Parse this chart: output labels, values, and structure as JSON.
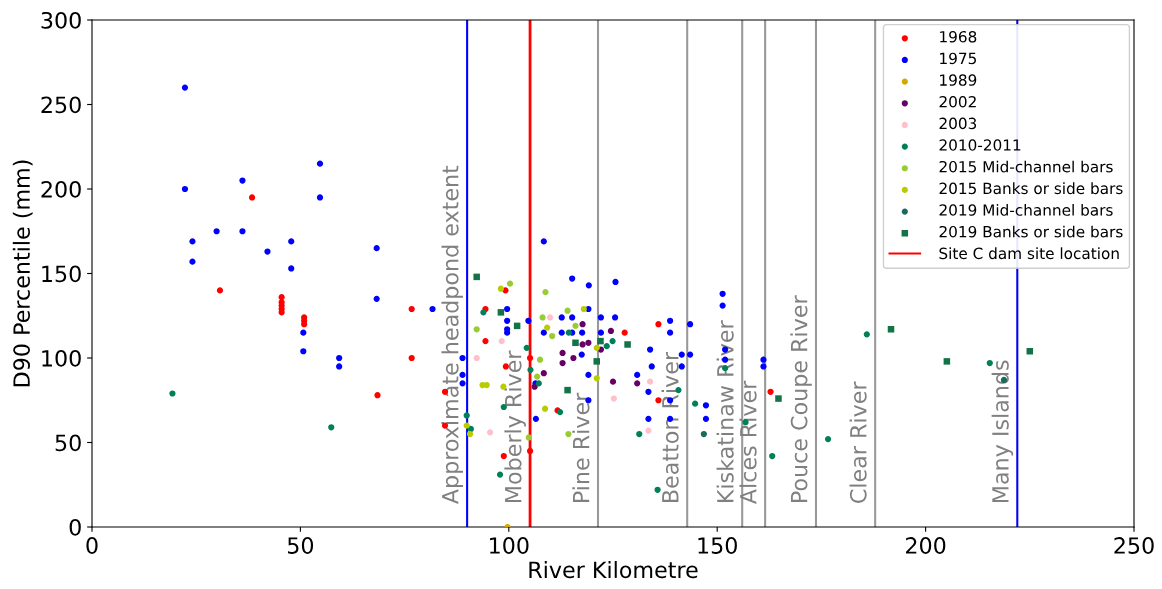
{
  "chart_data": {
    "type": "scatter",
    "xlabel": "River Kilometre",
    "ylabel": "D90 Percentile (mm)",
    "xlim": [
      0,
      250
    ],
    "xticks": [
      0,
      50,
      100,
      150,
      200,
      250
    ],
    "ylim": [
      0,
      300
    ],
    "yticks": [
      0,
      50,
      100,
      150,
      200,
      250,
      300
    ],
    "grid": false,
    "legend": "top right",
    "marker": "circle",
    "series": [
      {
        "name": "1968",
        "color": "#ff0000",
        "x": [
          38.4,
          30.7,
          45.5,
          45.5,
          45.5,
          45.5,
          45.5,
          50.9,
          50.9,
          50.9,
          76.7,
          76.7,
          68.5,
          84.7,
          84.7,
          99.2,
          94.4,
          127.8,
          111.7,
          105.1,
          94.4,
          99.3,
          98.8,
          105.1,
          135.9,
          135.9,
          162.8
        ],
        "values": [
          195,
          140,
          136,
          133,
          131,
          129,
          127,
          124,
          122,
          120,
          129,
          100,
          78,
          80,
          60,
          140,
          129,
          115,
          69,
          100,
          110,
          95,
          42,
          45,
          120,
          75,
          80
        ]
      },
      {
        "name": "1975",
        "color": "#0000ff",
        "x": [
          22.3,
          22.3,
          36.1,
          54.7,
          54.7,
          24.1,
          29.9,
          36.1,
          24.1,
          42.1,
          47.8,
          47.8,
          68.3,
          68.3,
          81.7,
          50.7,
          50.7,
          59.3,
          59.3,
          108.4,
          115.2,
          119.2,
          125.6,
          99.6,
          99.6,
          99.6,
          99.6,
          104.7,
          112.7,
          115.2,
          119.1,
          122.1,
          125.5,
          112.7,
          115.2,
          117.6,
          108.4,
          122.1,
          117.5,
          119.1,
          119.1,
          106.5,
          106.4,
          88.9,
          88.9,
          88.9,
          133.9,
          134.3,
          133.5,
          133.5,
          130.8,
          138.7,
          138.7,
          143.5,
          141.5,
          143.5,
          141.5,
          138.7,
          138.7,
          147.3,
          147.3,
          151.3,
          151.3,
          151.9,
          151.9,
          161.1,
          161.1
        ],
        "values": [
          260,
          200,
          205,
          215,
          195,
          169,
          175,
          175,
          157,
          163,
          169,
          153,
          165,
          135,
          129,
          115,
          104,
          100,
          95,
          169,
          147,
          143,
          145,
          129,
          122,
          117,
          115,
          122,
          124,
          124,
          129,
          124,
          124,
          115,
          115,
          115,
          115,
          115,
          102,
          90,
          75,
          64,
          85,
          100,
          90,
          85,
          105,
          95,
          80,
          64,
          90,
          122,
          115,
          120,
          102,
          102,
          95,
          75,
          64,
          72,
          64,
          138,
          131,
          105,
          99,
          99,
          95
        ]
      },
      {
        "name": "1989",
        "color": "#d4a800",
        "x": [
          99.7
        ],
        "values": [
          0
        ]
      },
      {
        "name": "2002",
        "color": "#660066",
        "x": [
          117.7,
          124.5,
          117.7,
          119.1,
          122.1,
          112.9,
          112.9,
          115.5,
          125.0,
          108.4,
          106.2,
          130.8
        ],
        "values": [
          120,
          116,
          108,
          109,
          105,
          103,
          97,
          100,
          86,
          91,
          83,
          85
        ]
      },
      {
        "name": "2003",
        "color": "#ffc0cb",
        "x": [
          98.3,
          95.5,
          92.3,
          133.9,
          133.5,
          109.9,
          125.2
        ],
        "values": [
          110,
          56,
          100,
          86,
          57,
          124,
          76
        ]
      },
      {
        "name": "2010-2011",
        "color": "#00805a",
        "x": [
          19.3,
          57.4,
          93.9,
          114.4,
          124.9,
          123.5,
          105.2,
          104.3,
          107.2,
          112.3,
          98.8,
          97.9,
          89.9,
          90.9,
          131.3,
          135.7,
          140.7,
          144.7,
          151.9,
          156.8,
          163.2,
          176.6,
          185.9,
          215.4
        ],
        "values": [
          79,
          59,
          127,
          115,
          110,
          107,
          93,
          106,
          85,
          68,
          71,
          31,
          66,
          58,
          55,
          22,
          81,
          73,
          94,
          62,
          42,
          52,
          114,
          97
        ]
      },
      {
        "name": "2015 Mid-channel bars",
        "color": "#99cc33",
        "x": [
          100.3,
          108.8,
          108.1,
          114.1,
          116.0,
          110.4,
          107.5,
          106.8,
          92.3,
          114.3,
          104.8
        ],
        "values": [
          144,
          139,
          124,
          128,
          119,
          113,
          99,
          89,
          117,
          55,
          53
        ]
      },
      {
        "name": "2015 Banks or side bars",
        "color": "#b8cc00",
        "x": [
          98.1,
          109.2,
          118.0,
          121.1,
          121.1,
          108.7,
          89.9,
          90.7,
          93.7,
          94.7,
          98.7
        ],
        "values": [
          141,
          118,
          129,
          106,
          88,
          70,
          60,
          55,
          84,
          84,
          83
        ]
      },
      {
        "name": "2019 Mid-channel bars",
        "color": "#1a6b5a",
        "x": [
          146.8,
          218.8
        ],
        "values": [
          55,
          87
        ]
      },
      {
        "name": "2019 Banks or side bars",
        "color": "#137346",
        "marker": "square",
        "x": [
          92.3,
          98.1,
          102.0,
          116.0,
          122.0,
          128.5,
          121.1,
          114.1,
          164.7,
          191.7,
          205.1,
          225.0
        ],
        "values": [
          148,
          127,
          119,
          109,
          110,
          108,
          98,
          81,
          76,
          117,
          98,
          104
        ]
      },
      {
        "name": "Site C dam site location",
        "type": "line",
        "color": "#ff0000",
        "marker": "none",
        "x": [
          105.1,
          105.1
        ],
        "values": [
          0,
          300
        ]
      }
    ],
    "ref_lines": [
      {
        "axis": "x",
        "value": 90,
        "label": "Approximate headpond extent",
        "color": "#0000ff"
      },
      {
        "axis": "x",
        "value": 121.4,
        "label": "Pine River",
        "color": "#999999"
      },
      {
        "axis": "x",
        "value": 142.8,
        "label": "Beatton River",
        "color": "#999999"
      },
      {
        "axis": "x",
        "value": 156,
        "label": "Kiskatinaw River",
        "color": "#999999"
      },
      {
        "axis": "x",
        "value": 161.5,
        "label": "Alces River",
        "color": "#999999"
      },
      {
        "axis": "x",
        "value": 173.7,
        "label": "Pouce Coupe River",
        "color": "#999999"
      },
      {
        "axis": "x",
        "value": 187.9,
        "label": "Clear River",
        "color": "#999999"
      },
      {
        "axis": "x",
        "value": 222,
        "label": "Many Islands",
        "color": "#0000ff"
      }
    ],
    "annotations": [
      {
        "text": "Moberly River",
        "x": 105.1,
        "y": 0
      }
    ]
  }
}
